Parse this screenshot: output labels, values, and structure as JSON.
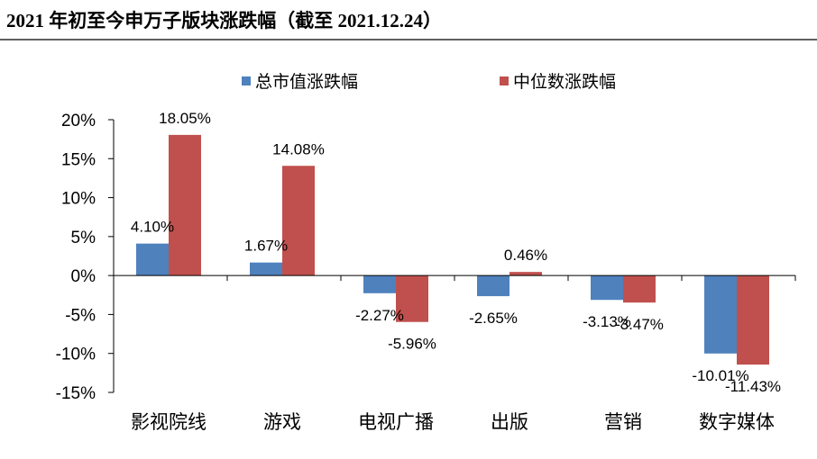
{
  "chart_data": {
    "type": "bar",
    "title": "2021 年初至今申万子版块涨跌幅（截至 2021.12.24）",
    "categories": [
      "影视院线",
      "游戏",
      "电视广播",
      "出版",
      "营销",
      "数字媒体"
    ],
    "series": [
      {
        "name": "总市值涨跌幅",
        "color": "#4F81BD",
        "values": [
          4.1,
          1.67,
          -2.27,
          -2.65,
          -3.13,
          -10.01
        ],
        "labels": [
          "4.10%",
          "1.67%",
          "-2.27%",
          "-2.65%",
          "-3.13%",
          "-10.01%"
        ]
      },
      {
        "name": "中位数涨跌幅",
        "color": "#C0504D",
        "values": [
          18.05,
          14.08,
          -5.96,
          0.46,
          -3.47,
          -11.43
        ],
        "labels": [
          "18.05%",
          "14.08%",
          "-5.96%",
          "0.46%",
          "-3.47%",
          "-11.43%"
        ]
      }
    ],
    "ylim": [
      -15,
      20
    ],
    "y_ticks": [
      20,
      15,
      10,
      5,
      0,
      -5,
      -10,
      -15
    ],
    "y_tick_labels": [
      "20%",
      "15%",
      "10%",
      "5%",
      "0%",
      "-5%",
      "-10%",
      "-15%"
    ],
    "legend": "top",
    "grid": false
  }
}
